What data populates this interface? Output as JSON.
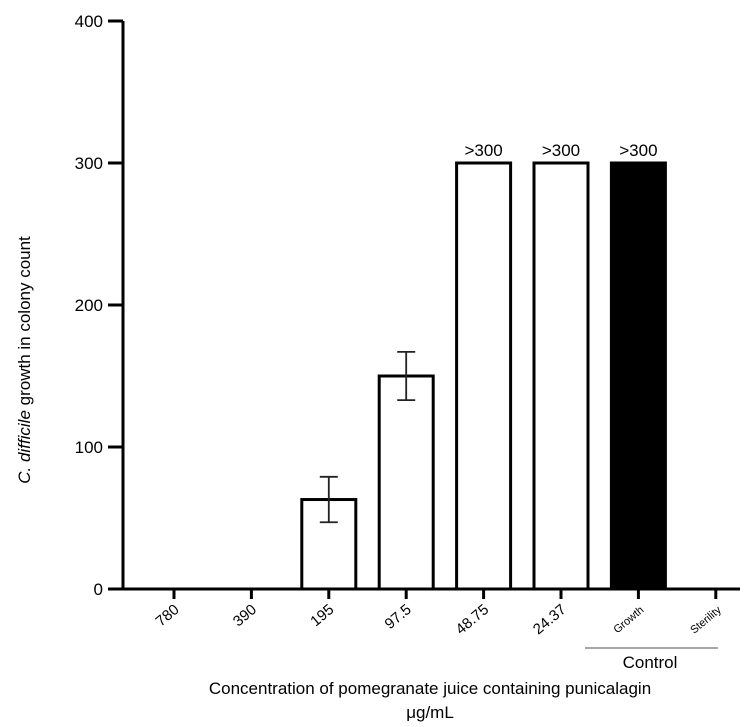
{
  "chart_data": {
    "type": "bar",
    "categories": [
      "780",
      "390",
      "195",
      "97.5",
      "48.75",
      "24.37",
      "Growth",
      "Sterility"
    ],
    "values": [
      0,
      0,
      63,
      150,
      300,
      300,
      300,
      0
    ],
    "error_bars": [
      null,
      null,
      16,
      17,
      null,
      null,
      null,
      null
    ],
    "bar_fill": [
      "#ffffff",
      "#ffffff",
      "#ffffff",
      "#ffffff",
      "#ffffff",
      "#ffffff",
      "#000000",
      "#ffffff"
    ],
    "data_labels": [
      "",
      "",
      "",
      "",
      ">300",
      ">300",
      ">300",
      ""
    ],
    "ylim": [
      0,
      400
    ],
    "yticks": [
      0,
      100,
      200,
      300,
      400
    ],
    "ylabel_italic": "C. difficile",
    "ylabel_rest": " growth in colony count",
    "xlabel_line1": "Concentration of pomegranate juice containing punicalagin",
    "xlabel_line2": "μg/mL",
    "group_label": "Control",
    "grid": false,
    "legend": "none"
  }
}
